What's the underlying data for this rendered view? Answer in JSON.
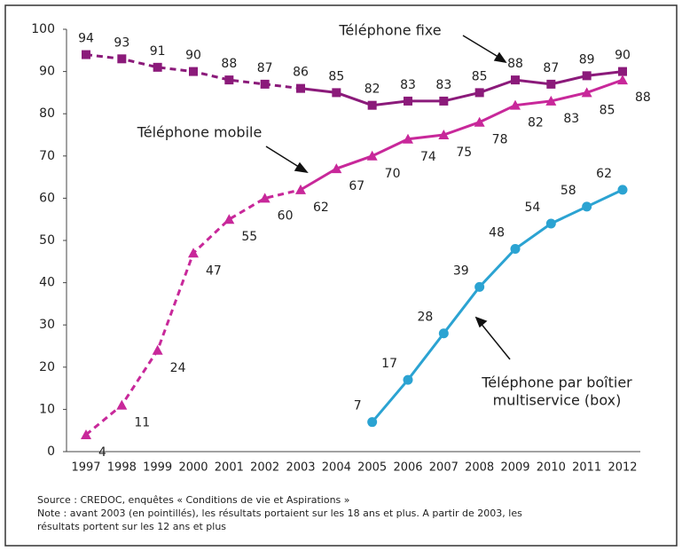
{
  "chart_data": {
    "type": "line",
    "categories": [
      "1997",
      "1998",
      "1999",
      "2000",
      "2001",
      "2002",
      "2003",
      "2004",
      "2005",
      "2006",
      "2007",
      "2008",
      "2009",
      "2010",
      "2011",
      "2012"
    ],
    "dashed_until": "2003",
    "series": [
      {
        "name": "Téléphone fixe",
        "color": "#8b1a7a",
        "marker": "square",
        "values": [
          94,
          93,
          91,
          90,
          88,
          87,
          86,
          85,
          82,
          83,
          83,
          85,
          88,
          87,
          89,
          90
        ]
      },
      {
        "name": "Téléphone mobile",
        "color": "#c8289a",
        "marker": "triangle",
        "values": [
          4,
          11,
          24,
          47,
          55,
          60,
          62,
          67,
          70,
          74,
          75,
          78,
          82,
          83,
          85,
          88
        ]
      },
      {
        "name": "Téléphone par boîtier multiservice (box)",
        "color": "#2ba3d2",
        "marker": "circle",
        "values": [
          null,
          null,
          null,
          null,
          null,
          null,
          null,
          null,
          7,
          17,
          28,
          39,
          48,
          54,
          58,
          62
        ]
      }
    ],
    "annotations": [
      {
        "lines": [
          "Téléphone fixe"
        ]
      },
      {
        "lines": [
          "Téléphone mobile"
        ]
      },
      {
        "lines": [
          "Téléphone par boîtier",
          "multiservice (box)"
        ]
      }
    ],
    "ylim": [
      0,
      100
    ],
    "yticks": [
      0,
      10,
      20,
      30,
      40,
      50,
      60,
      70,
      80,
      90,
      100
    ],
    "grid": false,
    "footer": [
      "Source : CREDOC, enquêtes « Conditions de vie et Aspirations »",
      "Note : avant 2003 (en pointillés), les résultats portaient sur les 18 ans et plus. A partir de 2003, les",
      "résultats portent sur les 12 ans et plus"
    ]
  }
}
